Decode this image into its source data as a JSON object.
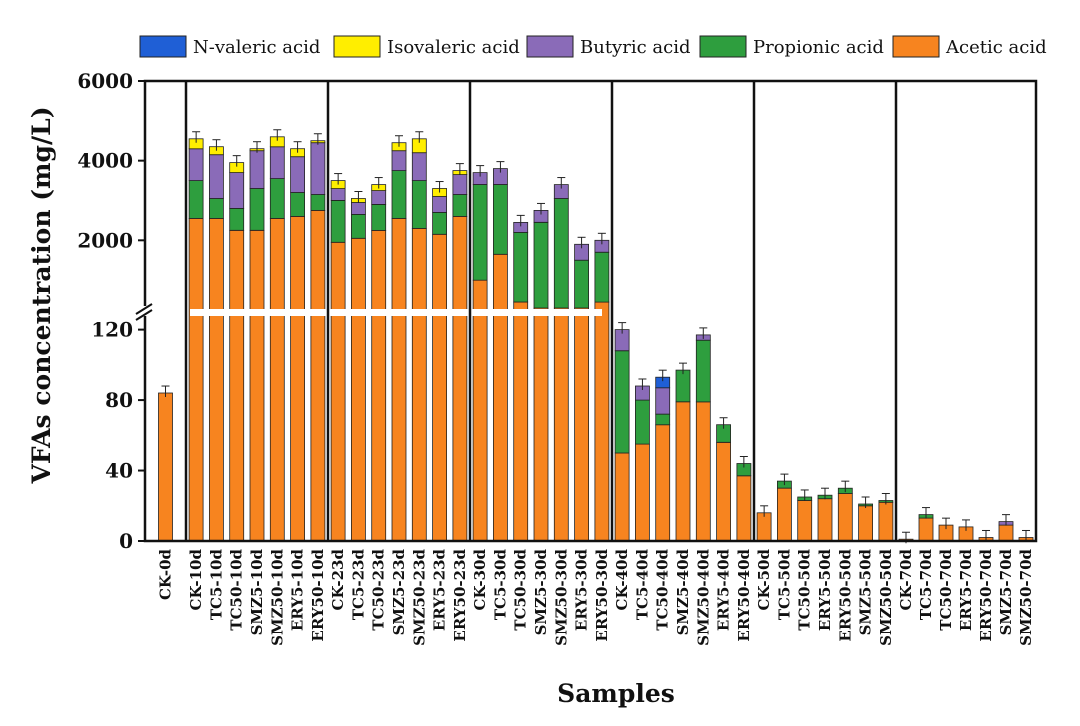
{
  "chart_data": {
    "type": "bar",
    "stacked": true,
    "xlabel": "Samples",
    "ylabel": "VFAs concentration (mg/L)",
    "axis_break": {
      "lower_range": [
        0,
        130
      ],
      "upper_range": [
        200,
        6000
      ]
    },
    "yticks_lower": [
      0,
      40,
      80,
      120
    ],
    "yticks_upper": [
      2000,
      4000,
      6000
    ],
    "ytick_labels_lower": [
      "0",
      "40",
      "80",
      "120"
    ],
    "ytick_labels_upper": [
      "2000",
      "4000",
      "6000"
    ],
    "legend_position": "top",
    "legend": [
      "N-valeric acid",
      "Isovaleric acid",
      "Butyric acid",
      "Propionic acid",
      "Acetic acid"
    ],
    "series_order_bottom_to_top": [
      "Acetic acid",
      "Propionic acid",
      "Butyric acid",
      "Isovaleric acid",
      "N-valeric acid"
    ],
    "colors": {
      "N-valeric acid": "#1f5fd6",
      "Isovaleric acid": "#ffee00",
      "Butyric acid": "#8a6bb8",
      "Propionic acid": "#2e9e3e",
      "Acetic acid": "#f7841f"
    },
    "groups": [
      {
        "name": "0d",
        "bars": [
          {
            "label": "CK-0d",
            "acetic": 84,
            "propionic": 0,
            "butyric": 0,
            "isovaleric": 0,
            "nvaleric": 0
          }
        ]
      },
      {
        "name": "10d",
        "bars": [
          {
            "label": "CK-10d",
            "acetic": 2550,
            "propionic": 950,
            "butyric": 800,
            "isovaleric": 250,
            "nvaleric": 0
          },
          {
            "label": "TC5-10d",
            "acetic": 2550,
            "propionic": 500,
            "butyric": 1100,
            "isovaleric": 200,
            "nvaleric": 0
          },
          {
            "label": "TC50-10d",
            "acetic": 2250,
            "propionic": 550,
            "butyric": 900,
            "isovaleric": 250,
            "nvaleric": 0
          },
          {
            "label": "SMZ5-10d",
            "acetic": 2250,
            "propionic": 1050,
            "butyric": 950,
            "isovaleric": 50,
            "nvaleric": 0
          },
          {
            "label": "SMZ50-10d",
            "acetic": 2550,
            "propionic": 1000,
            "butyric": 800,
            "isovaleric": 250,
            "nvaleric": 0
          },
          {
            "label": "ERY5-10d",
            "acetic": 2600,
            "propionic": 600,
            "butyric": 900,
            "isovaleric": 200,
            "nvaleric": 0
          },
          {
            "label": "ERY50-10d",
            "acetic": 2750,
            "propionic": 400,
            "butyric": 1300,
            "isovaleric": 50,
            "nvaleric": 0
          }
        ]
      },
      {
        "name": "23d",
        "bars": [
          {
            "label": "CK-23d",
            "acetic": 1950,
            "propionic": 1050,
            "butyric": 300,
            "isovaleric": 200,
            "nvaleric": 0
          },
          {
            "label": "TC5-23d",
            "acetic": 2050,
            "propionic": 600,
            "butyric": 300,
            "isovaleric": 100,
            "nvaleric": 0
          },
          {
            "label": "TC50-23d",
            "acetic": 2250,
            "propionic": 650,
            "butyric": 350,
            "isovaleric": 150,
            "nvaleric": 0
          },
          {
            "label": "SMZ5-23d",
            "acetic": 2550,
            "propionic": 1200,
            "butyric": 500,
            "isovaleric": 200,
            "nvaleric": 0
          },
          {
            "label": "SMZ50-23d",
            "acetic": 2300,
            "propionic": 1200,
            "butyric": 700,
            "isovaleric": 350,
            "nvaleric": 0
          },
          {
            "label": "ERY5-23d",
            "acetic": 2150,
            "propionic": 550,
            "butyric": 400,
            "isovaleric": 200,
            "nvaleric": 0
          },
          {
            "label": "ERY50-23d",
            "acetic": 2600,
            "propionic": 550,
            "butyric": 500,
            "isovaleric": 100,
            "nvaleric": 0
          }
        ]
      },
      {
        "name": "30d",
        "bars": [
          {
            "label": "CK-30d",
            "acetic": 1000,
            "propionic": 2400,
            "butyric": 300,
            "isovaleric": 0,
            "nvaleric": 0
          },
          {
            "label": "TC5-30d",
            "acetic": 1650,
            "propionic": 1750,
            "butyric": 400,
            "isovaleric": 0,
            "nvaleric": 0
          },
          {
            "label": "TC50-30d",
            "acetic": 450,
            "propionic": 1750,
            "butyric": 250,
            "isovaleric": 0,
            "nvaleric": 0
          },
          {
            "label": "SMZ5-30d",
            "acetic": 300,
            "propionic": 2150,
            "butyric": 300,
            "isovaleric": 0,
            "nvaleric": 0
          },
          {
            "label": "SMZ50-30d",
            "acetic": 300,
            "propionic": 2750,
            "butyric": 350,
            "isovaleric": 0,
            "nvaleric": 0
          },
          {
            "label": "ERY5-30d",
            "acetic": 300,
            "propionic": 1200,
            "butyric": 400,
            "isovaleric": 0,
            "nvaleric": 0
          },
          {
            "label": "ERY50-30d",
            "acetic": 450,
            "propionic": 1250,
            "butyric": 300,
            "isovaleric": 0,
            "nvaleric": 0
          }
        ]
      },
      {
        "name": "40d",
        "bars": [
          {
            "label": "CK-40d",
            "acetic": 50,
            "propionic": 58,
            "butyric": 12,
            "isovaleric": 0,
            "nvaleric": 0
          },
          {
            "label": "TC5-40d",
            "acetic": 55,
            "propionic": 25,
            "butyric": 8,
            "isovaleric": 0,
            "nvaleric": 0
          },
          {
            "label": "TC50-40d",
            "acetic": 66,
            "propionic": 6,
            "butyric": 15,
            "isovaleric": 0,
            "nvaleric": 6
          },
          {
            "label": "SMZ5-40d",
            "acetic": 79,
            "propionic": 18,
            "butyric": 0,
            "isovaleric": 0,
            "nvaleric": 0
          },
          {
            "label": "SMZ50-40d",
            "acetic": 79,
            "propionic": 35,
            "butyric": 3,
            "isovaleric": 0,
            "nvaleric": 0
          },
          {
            "label": "ERY5-40d",
            "acetic": 56,
            "propionic": 10,
            "butyric": 0,
            "isovaleric": 0,
            "nvaleric": 0
          },
          {
            "label": "ERY50-40d",
            "acetic": 37,
            "propionic": 7,
            "butyric": 0,
            "isovaleric": 0,
            "nvaleric": 0
          }
        ]
      },
      {
        "name": "50d",
        "bars": [
          {
            "label": "CK-50d",
            "acetic": 16,
            "propionic": 0,
            "butyric": 0,
            "isovaleric": 0,
            "nvaleric": 0
          },
          {
            "label": "TC5-50d",
            "acetic": 30,
            "propionic": 4,
            "butyric": 0,
            "isovaleric": 0,
            "nvaleric": 0
          },
          {
            "label": "TC50-50d",
            "acetic": 23,
            "propionic": 2,
            "butyric": 0,
            "isovaleric": 0,
            "nvaleric": 0
          },
          {
            "label": "ERY5-50d",
            "acetic": 24,
            "propionic": 2,
            "butyric": 0,
            "isovaleric": 0,
            "nvaleric": 0
          },
          {
            "label": "ERY50-50d",
            "acetic": 27,
            "propionic": 3,
            "butyric": 0,
            "isovaleric": 0,
            "nvaleric": 0
          },
          {
            "label": "SMZ5-50d",
            "acetic": 20,
            "propionic": 1,
            "butyric": 0,
            "isovaleric": 0,
            "nvaleric": 0
          },
          {
            "label": "SMZ50-50d",
            "acetic": 22,
            "propionic": 1,
            "butyric": 0,
            "isovaleric": 0,
            "nvaleric": 0
          }
        ]
      },
      {
        "name": "70d",
        "bars": [
          {
            "label": "CK-70d",
            "acetic": 1,
            "propionic": 0,
            "butyric": 0,
            "isovaleric": 0,
            "nvaleric": 0
          },
          {
            "label": "TC5-70d",
            "acetic": 13,
            "propionic": 2,
            "butyric": 0,
            "isovaleric": 0,
            "nvaleric": 0
          },
          {
            "label": "TC50-70d",
            "acetic": 9,
            "propionic": 0,
            "butyric": 0,
            "isovaleric": 0,
            "nvaleric": 0
          },
          {
            "label": "ERY5-70d",
            "acetic": 8,
            "propionic": 0,
            "butyric": 0,
            "isovaleric": 0,
            "nvaleric": 0
          },
          {
            "label": "ERY50-70d",
            "acetic": 2,
            "propionic": 0,
            "butyric": 0,
            "isovaleric": 0,
            "nvaleric": 0
          },
          {
            "label": "SMZ5-70d",
            "acetic": 9,
            "propionic": 0,
            "butyric": 2,
            "isovaleric": 0,
            "nvaleric": 0
          },
          {
            "label": "SMZ50-70d",
            "acetic": 2,
            "propionic": 0,
            "butyric": 0,
            "isovaleric": 0,
            "nvaleric": 0
          }
        ]
      }
    ]
  }
}
